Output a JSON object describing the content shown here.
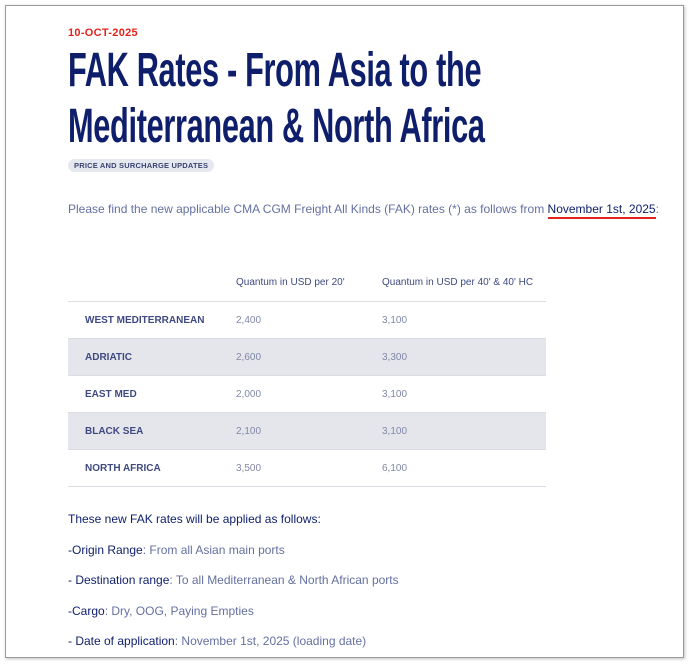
{
  "date": "10-OCT-2025",
  "title_line1": "FAK Rates - From Asia to the",
  "title_line2": "Mediterranean & North Africa",
  "tag": "PRICE AND SURCHARGE UPDATES",
  "intro": {
    "text": "Please find the new applicable CMA CGM Freight All Kinds (FAK) rates (*) as follows from ",
    "highlight": "November 1st, 2025",
    "end": ":"
  },
  "table": {
    "headers": [
      "",
      "Quantum in USD per 20'",
      "Quantum in USD per 40' & 40' HC"
    ],
    "rows": [
      {
        "region": "WEST MEDITERRANEAN",
        "rate20": "2,400",
        "rate40": "3,100"
      },
      {
        "region": "ADRIATIC",
        "rate20": "2,600",
        "rate40": "3,300"
      },
      {
        "region": "EAST MED",
        "rate20": "2,000",
        "rate40": "3,100"
      },
      {
        "region": "BLACK SEA",
        "rate20": "2,100",
        "rate40": "3,100"
      },
      {
        "region": "NORTH AFRICA",
        "rate20": "3,500",
        "rate40": "6,100"
      }
    ]
  },
  "application": {
    "heading": "These new FAK rates will be applied as follows:",
    "items": [
      {
        "label": "-Origin Range",
        "value": ": From all Asian main ports"
      },
      {
        "label": "- Destination range",
        "value": ": To all Mediterranean & North African ports"
      },
      {
        "label": "-Cargo",
        "value": ": Dry, OOG, Paying Empties"
      },
      {
        "label": "- Date of application",
        "value": ": November 1st, 2025 (loading date)"
      }
    ]
  },
  "colors": {
    "accent_red": "#e2231a",
    "navy": "#0e1e6b",
    "row_alt": "#e5e6ec"
  }
}
